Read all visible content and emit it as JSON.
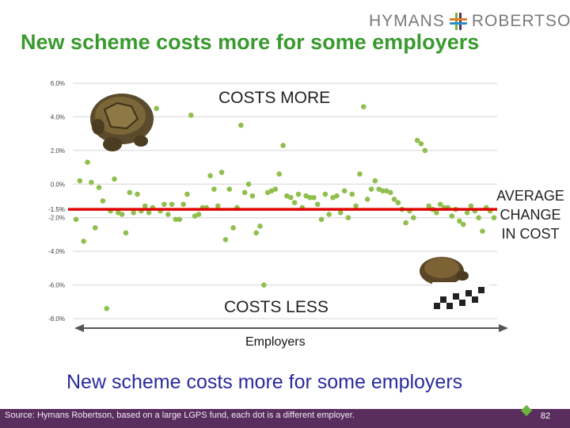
{
  "header": {
    "logo_text_left": "HYMANS",
    "logo_text_right": "ROBERTSON",
    "title": "New scheme costs more for some employers"
  },
  "annotations": {
    "costs_more": "COSTS MORE",
    "costs_less": "COSTS LESS",
    "average_line1": "AVERAGE",
    "average_line2": "CHANGE",
    "average_line3": "IN COST",
    "x_axis": "Employers"
  },
  "subtitle": "New scheme costs more for some employers",
  "footer": {
    "source": "Source: Hymans Robertson, based on a large LGPS fund, each dot is a different employer.",
    "page_number": "82"
  },
  "colors": {
    "title": "#3a9a2e",
    "dot": "#8fbf4e",
    "average_line": "#e00000",
    "subtitle": "#2a2aa0",
    "footer_bg": "#5a2d5f"
  },
  "chart_data": {
    "type": "scatter",
    "title": "",
    "xlabel": "Employers",
    "ylabel": "",
    "ylim": [
      -8.0,
      6.0
    ],
    "yticks": [
      "6.0%",
      "4.0%",
      "2.0%",
      "0.0%",
      "-2.0%",
      "-4.0%",
      "-6.0%",
      "-8.0%"
    ],
    "ytick_values": [
      6,
      4,
      2,
      0,
      -2,
      -4,
      -6,
      -8
    ],
    "average": -1.5,
    "average_label": "-1.5%",
    "grid": true,
    "series": [
      {
        "x": [
          1,
          2,
          3,
          4,
          5,
          6,
          7,
          8,
          9,
          10,
          11,
          12,
          13,
          14,
          15,
          16,
          17,
          18,
          19,
          20,
          21,
          22,
          23,
          24,
          25,
          26,
          27,
          28,
          29,
          30,
          31,
          32,
          33,
          34,
          35,
          36,
          37,
          38,
          39,
          40,
          41,
          42,
          43,
          44,
          45,
          46,
          47,
          48,
          49,
          50,
          51,
          52,
          53,
          54,
          55,
          56,
          57,
          58,
          59,
          60,
          61,
          62,
          63,
          64,
          65,
          66,
          67,
          68,
          69,
          70,
          71,
          72,
          73,
          74,
          75,
          76,
          77,
          78,
          79,
          80,
          81,
          82,
          83,
          84,
          85,
          86,
          87,
          88,
          89,
          90,
          91,
          92,
          93,
          94,
          95,
          96,
          97,
          98,
          99,
          100,
          101,
          102,
          103,
          104,
          105,
          106,
          107,
          108,
          109,
          110
        ],
        "values": [
          -2.1,
          0.2,
          -3.4,
          1.3,
          0.1,
          -2.6,
          -0.2,
          -1.0,
          -7.4,
          -1.6,
          0.3,
          -1.7,
          -1.8,
          -2.9,
          -0.5,
          -1.7,
          -0.6,
          -1.6,
          -1.3,
          -1.7,
          -1.4,
          4.5,
          -1.6,
          -1.2,
          -1.8,
          -1.2,
          -2.1,
          -2.1,
          -1.2,
          -0.6,
          4.1,
          -1.9,
          -1.8,
          -1.4,
          -1.4,
          0.5,
          -0.3,
          -1.3,
          0.7,
          -3.3,
          -0.3,
          -2.6,
          -1.4,
          3.5,
          -0.5,
          0.0,
          -0.7,
          -2.9,
          -2.5,
          -6.0,
          -0.5,
          -0.4,
          -0.3,
          0.6,
          2.3,
          -0.7,
          -0.8,
          -1.1,
          -0.6,
          -1.4,
          -0.7,
          -0.8,
          -0.8,
          -1.2,
          -2.1,
          -0.6,
          -1.8,
          -0.8,
          -0.7,
          -1.7,
          -0.4,
          -2.0,
          -0.6,
          -1.3,
          0.6,
          4.6,
          -0.9,
          -0.3,
          0.2,
          -0.3,
          -0.4,
          -0.4,
          -0.5,
          -0.9,
          -1.1,
          -1.5,
          -2.3,
          -1.6,
          -2.0,
          2.6,
          2.4,
          2.0,
          -1.3,
          -1.5,
          -1.7,
          -1.2,
          -1.4,
          -1.4,
          -1.9,
          -1.5,
          -2.2,
          -2.4,
          -1.7,
          -1.3,
          -1.6,
          -2.0,
          -2.8,
          -1.4,
          -1.6,
          -2.0
        ]
      }
    ]
  }
}
